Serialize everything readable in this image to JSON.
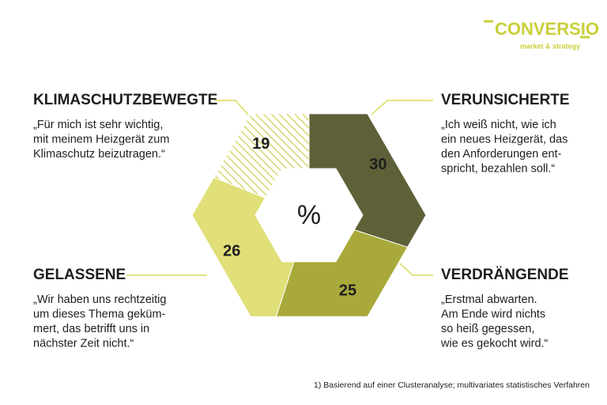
{
  "chart_data": {
    "type": "hexagon-donut",
    "logo": "CONVERSIO",
    "logo_tagline": "market & strategy",
    "center_label": "%",
    "categories": [
      "VERUNSICHERTE",
      "VERDRÄNGENDE",
      "GELASSENE",
      "KLIMASCHUTZBEWEGTE"
    ],
    "values": [
      30,
      25,
      26,
      19
    ],
    "colors": [
      "#5e6138",
      "#a9a93b",
      "#e0df78",
      "#d6d86a"
    ],
    "hatched": [
      false,
      false,
      false,
      true
    ],
    "quotes": [
      [
        "„Ich weiß nicht, wie ich",
        "ein neues Heizgerät, das",
        "den Anforderungen ent-",
        "spricht, bezahlen soll.“"
      ],
      [
        "„Erstmal abwarten.",
        "Am Ende wird nichts",
        "so heiß gegessen,",
        "wie es gekocht wird.“"
      ],
      [
        "„Wir haben uns rechtzeitig",
        "um dieses Thema geküm-",
        "mert, das betrifft uns in",
        "nächster Zeit nicht.“"
      ],
      [
        "„Für mich ist sehr wichtig,",
        "mit meinem Heizgerät zum",
        "Klimaschutz beizutragen.“"
      ]
    ],
    "footnote": "1) Basierend auf einer Clusteranalyse; multivariates statistisches Verfahren"
  }
}
